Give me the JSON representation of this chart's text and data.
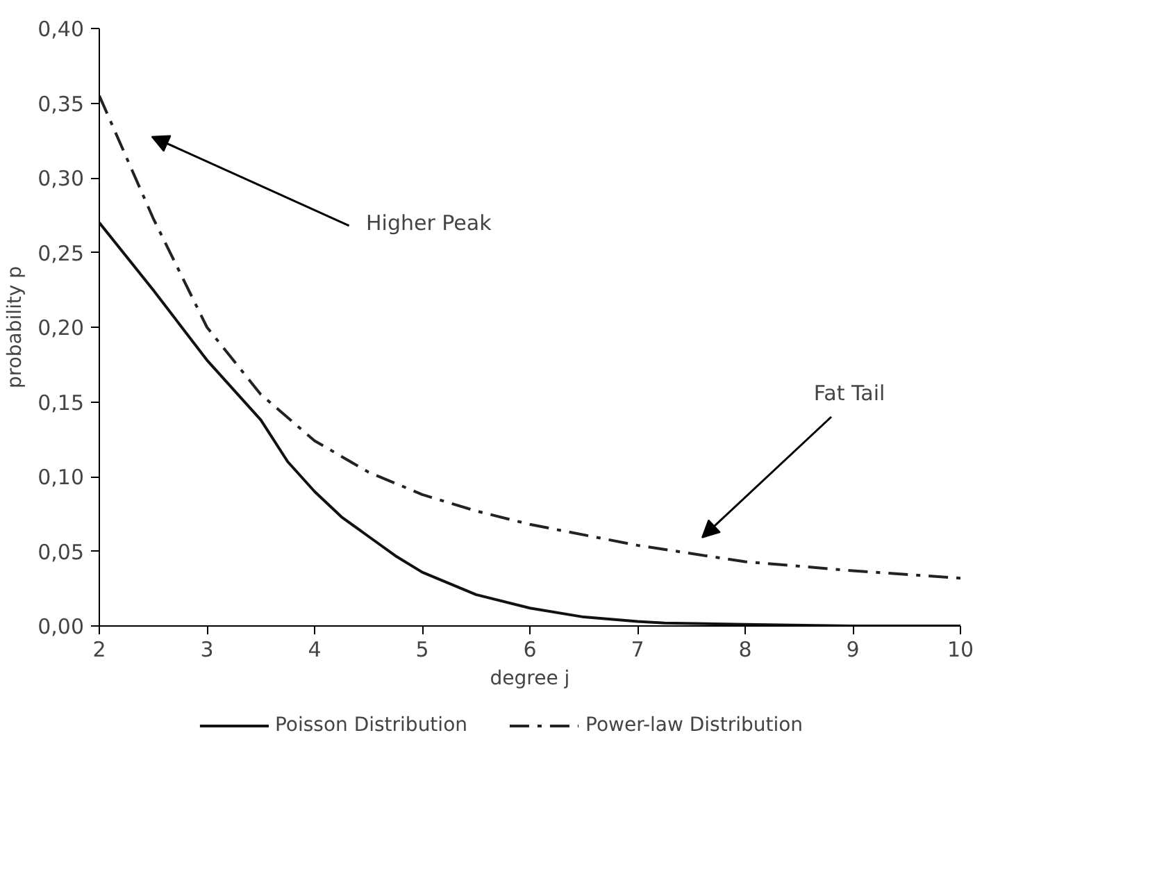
{
  "chart_data": {
    "type": "line",
    "xlabel": "degree j",
    "ylabel": "probability p",
    "xlim": [
      2,
      10
    ],
    "ylim": [
      0,
      0.4
    ],
    "xticks": [
      2,
      3,
      4,
      5,
      6,
      7,
      8,
      9,
      10
    ],
    "yticks": [
      {
        "value": 0,
        "label": "0,00"
      },
      {
        "value": 0.05,
        "label": "0,05"
      },
      {
        "value": 0.1,
        "label": "0,10"
      },
      {
        "value": 0.15,
        "label": "0,15"
      },
      {
        "value": 0.2,
        "label": "0,20"
      },
      {
        "value": 0.25,
        "label": "0,25"
      },
      {
        "value": 0.3,
        "label": "0,30"
      },
      {
        "value": 0.35,
        "label": "0,35"
      },
      {
        "value": 0.4,
        "label": "0,40"
      }
    ],
    "grid": false,
    "legend": "bottom",
    "series": [
      {
        "name": "Poisson Distribution",
        "color": "#111111",
        "line_style": "solid",
        "x": [
          2,
          2.5,
          3,
          3.5,
          3.75,
          4,
          4.25,
          4.5,
          4.75,
          5,
          5.5,
          6,
          6.5,
          7,
          7.25,
          8,
          9,
          10
        ],
        "values": [
          0.27,
          0.225,
          0.178,
          0.138,
          0.11,
          0.09,
          0.073,
          0.06,
          0.047,
          0.036,
          0.021,
          0.012,
          0.006,
          0.003,
          0.002,
          0.001,
          0.0,
          0.0
        ]
      },
      {
        "name": "Power-law Distribution",
        "color": "#222222",
        "line_style": "dashed",
        "x": [
          2,
          2.5,
          3,
          3.5,
          4,
          4.5,
          5,
          5.5,
          6,
          7,
          8,
          9,
          10
        ],
        "values": [
          0.355,
          0.273,
          0.2,
          0.155,
          0.124,
          0.103,
          0.088,
          0.077,
          0.068,
          0.054,
          0.043,
          0.037,
          0.032
        ]
      }
    ],
    "annotations": [
      "Higher Peak",
      "Fat Tail"
    ]
  }
}
